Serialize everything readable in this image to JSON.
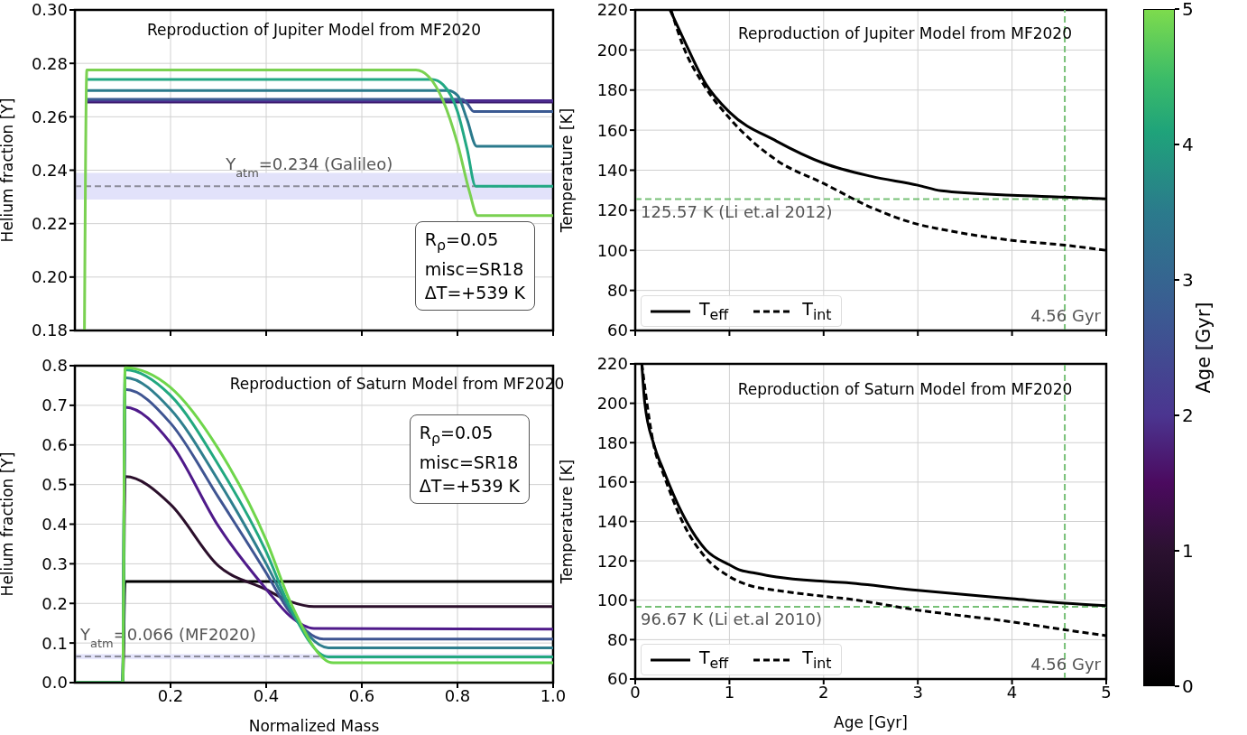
{
  "chart_data": [
    {
      "type": "line",
      "title": "Reproduction of Jupiter Model from MF2020",
      "ylabel": "Helium fraction [Y]",
      "xlim": [
        0,
        1
      ],
      "xticks": [
        0.2,
        0.4,
        0.6,
        0.8,
        1
      ],
      "ylim": [
        0.18,
        0.3
      ],
      "yticks": [
        {
          "value": 0.18,
          "label": "0.18"
        },
        {
          "value": 0.2,
          "label": "0.20"
        },
        {
          "value": 0.22,
          "label": "0.22"
        },
        {
          "value": 0.24,
          "label": "0.24"
        },
        {
          "value": 0.26,
          "label": "0.26"
        },
        {
          "value": 0.28,
          "label": "0.28"
        },
        {
          "value": 0.3,
          "label": "0.30"
        }
      ],
      "tick_labels": "y",
      "grid": true,
      "legend": false,
      "annotations": [
        "R$_{ρ}$=0.05\nmisc=SR18\nΔT=+539 K"
      ],
      "ref_lines": [
        {
          "axis": "y",
          "value": 0.234,
          "label": "Y$_{atm}$=0.234 (Galileo)",
          "color": "#8c8c99",
          "line_style": "dashed"
        }
      ],
      "bands": [
        {
          "axis": "y",
          "from": 0.229,
          "to": 0.239,
          "color": "#e2e2fa"
        }
      ],
      "series": [
        {
          "color": "#3a1a6e",
          "x": [
            0.025,
            1
          ],
          "values": [
            0.2655,
            0.2655
          ]
        },
        {
          "color": "#4b2a8e",
          "x": [
            0.025,
            1
          ],
          "values": [
            0.266,
            0.266
          ]
        },
        {
          "color": "#3b5a92",
          "x": [
            0.025,
            0.81,
            0.82,
            0.834,
            1
          ],
          "values": [
            0.2665,
            0.2665,
            0.265,
            0.262,
            0.262
          ]
        },
        {
          "color": "#2b7a8c",
          "x": [
            0.025,
            0.78,
            0.8,
            0.82,
            0.84,
            1
          ],
          "values": [
            0.2698,
            0.2698,
            0.268,
            0.259,
            0.249,
            0.249
          ]
        },
        {
          "color": "#22a884",
          "x": [
            0.025,
            0.747,
            0.77,
            0.8,
            0.82,
            0.838,
            1
          ],
          "values": [
            0.274,
            0.274,
            0.272,
            0.262,
            0.248,
            0.234,
            0.234
          ]
        },
        {
          "color": "#7ad151",
          "x": [
            0.02,
            0.025,
            0.713,
            0.74,
            0.77,
            0.8,
            0.825,
            0.842,
            1
          ],
          "values": [
            0.18,
            0.2775,
            0.2775,
            0.275,
            0.266,
            0.25,
            0.232,
            0.223,
            0.223
          ]
        }
      ]
    },
    {
      "type": "line",
      "title": "Reproduction of Jupiter Model from MF2020",
      "ylabel": "Temperature [K]",
      "xlim": [
        0,
        5
      ],
      "xticks": [
        0,
        1,
        2,
        3,
        4,
        5
      ],
      "ylim": [
        60,
        220
      ],
      "yticks": [
        60,
        80,
        100,
        120,
        140,
        160,
        180,
        200,
        220
      ],
      "tick_labels": "y",
      "grid": true,
      "legend": "bottom left",
      "ref_lines": [
        {
          "axis": "y",
          "value": 125.57,
          "label": "125.57 K (Li et.al 2012)",
          "color": "#77c077",
          "line_style": "dashed"
        },
        {
          "axis": "x",
          "value": 4.56,
          "label": "4.56 Gyr",
          "color": "#77c077",
          "line_style": "dashed"
        }
      ],
      "series": [
        {
          "name": "T$_{eff}$",
          "color": "#000000",
          "line_style": "solid",
          "x": [
            0.37,
            0.5,
            0.75,
            1,
            1.5,
            2,
            2.5,
            3,
            3.25,
            4,
            4.56,
            5
          ],
          "values": [
            220,
            206.8,
            183,
            169,
            154.5,
            143.5,
            137,
            132.5,
            129.7,
            127.5,
            126.6,
            125.7
          ]
        },
        {
          "name": "T$_{int}$",
          "color": "#000000",
          "line_style": "dashed",
          "x": [
            0.38,
            0.5,
            0.75,
            1,
            1.5,
            2,
            2.5,
            3,
            3.25,
            4,
            4.56,
            5
          ],
          "values": [
            220,
            203,
            181,
            166,
            145,
            133.4,
            121.5,
            113,
            110.5,
            105,
            102.6,
            100
          ]
        }
      ]
    },
    {
      "type": "line",
      "title": "Reproduction of Saturn Model from MF2020",
      "xlabel": "Normalized Mass",
      "ylabel": "Helium fraction [Y]",
      "xlim": [
        0,
        1
      ],
      "xticks": [
        0.2,
        0.4,
        0.6,
        0.8,
        {
          "value": 1,
          "label": "1.0"
        }
      ],
      "ylim": [
        0,
        0.8
      ],
      "yticks": [
        {
          "value": 0,
          "label": "0.0"
        },
        0.1,
        0.2,
        0.3,
        0.4,
        0.5,
        0.6,
        0.7,
        0.8
      ],
      "grid": true,
      "legend": false,
      "clabel": "Age [Gyr]",
      "clim": [
        0,
        5
      ],
      "cticks": [
        0,
        1,
        2,
        3,
        4,
        5
      ],
      "annotations": [
        "R$_{ρ}$=0.05\nmisc=SR18\nΔT=+539 K"
      ],
      "ref_lines": [
        {
          "axis": "y",
          "value": 0.066,
          "label": "Y$_{atm}$=0.066 (MF2020)",
          "color": "#8c8c99",
          "line_style": "dashed"
        }
      ],
      "bands": [
        {
          "axis": "y",
          "from": 0.06,
          "to": 0.072,
          "color": "#e2e2fa"
        }
      ],
      "series": [
        {
          "color": "#000000",
          "x": [
            0,
            0.1,
            0.105,
            1
          ],
          "values": [
            0,
            0,
            0.255,
            0.255
          ]
        },
        {
          "color": "#2b0f2b",
          "x": [
            0,
            0.1,
            0.105,
            0.2,
            0.3,
            0.4,
            0.45,
            0.5,
            1
          ],
          "values": [
            0,
            0,
            0.52,
            0.45,
            0.295,
            0.235,
            0.205,
            0.192,
            0.192
          ]
        },
        {
          "color": "#4f1a8a",
          "x": [
            0,
            0.1,
            0.105,
            0.2,
            0.3,
            0.4,
            0.45,
            0.5,
            1
          ],
          "values": [
            0,
            0,
            0.695,
            0.605,
            0.395,
            0.236,
            0.168,
            0.137,
            0.135
          ]
        },
        {
          "color": "#3f5592",
          "x": [
            0,
            0.1,
            0.105,
            0.2,
            0.3,
            0.4,
            0.45,
            0.52,
            1
          ],
          "values": [
            0,
            0,
            0.74,
            0.655,
            0.468,
            0.277,
            0.177,
            0.11,
            0.11
          ]
        },
        {
          "color": "#2f7f8e",
          "x": [
            0,
            0.1,
            0.105,
            0.2,
            0.3,
            0.4,
            0.45,
            0.53,
            1
          ],
          "values": [
            0,
            0,
            0.77,
            0.69,
            0.51,
            0.3,
            0.185,
            0.088,
            0.088
          ]
        },
        {
          "color": "#22a880",
          "x": [
            0,
            0.1,
            0.105,
            0.2,
            0.3,
            0.4,
            0.45,
            0.53,
            1
          ],
          "values": [
            0,
            0,
            0.79,
            0.725,
            0.55,
            0.33,
            0.19,
            0.065,
            0.065
          ]
        },
        {
          "color": "#6fd64b",
          "x": [
            0,
            0.1,
            0.105,
            0.2,
            0.3,
            0.4,
            0.45,
            0.54,
            1
          ],
          "values": [
            0,
            0,
            0.795,
            0.745,
            0.59,
            0.36,
            0.205,
            0.05,
            0.05
          ]
        }
      ]
    },
    {
      "type": "line",
      "title": "Reproduction of Saturn Model from MF2020",
      "xlabel": "Age [Gyr]",
      "ylabel": "Temperature [K]",
      "xlim": [
        0,
        5
      ],
      "xticks": [
        0,
        1,
        2,
        3,
        4,
        5
      ],
      "ylim": [
        60,
        220
      ],
      "yticks": [
        60,
        80,
        100,
        120,
        140,
        160,
        180,
        200,
        220
      ],
      "grid": true,
      "legend": "bottom left",
      "ref_lines": [
        {
          "axis": "y",
          "value": 96.67,
          "label": "96.67 K (Li et.al 2010)",
          "color": "#77c077",
          "line_style": "dashed"
        },
        {
          "axis": "x",
          "value": 4.56,
          "label": "4.56 Gyr",
          "color": "#77c077",
          "line_style": "dashed"
        }
      ],
      "series": [
        {
          "name": "T$_{eff}$",
          "color": "#000000",
          "line_style": "solid",
          "x": [
            0.07,
            0.1,
            0.2,
            0.3,
            0.5,
            0.75,
            1,
            1.1,
            1.25,
            1.5,
            2,
            2.2,
            3,
            4,
            4.56,
            5
          ],
          "values": [
            220,
            200.7,
            178.8,
            166,
            144,
            125.6,
            118,
            115.5,
            114,
            111.8,
            109.6,
            109,
            105,
            100.8,
            98.5,
            97.2
          ]
        },
        {
          "name": "T$_{int}$",
          "color": "#000000",
          "line_style": "dashed",
          "x": [
            0.07,
            0.2,
            0.3,
            0.5,
            0.75,
            1,
            1.1,
            1.25,
            1.5,
            2,
            2.2,
            3,
            4,
            4.56,
            5
          ],
          "values": [
            220,
            178,
            164,
            140,
            121.5,
            112,
            109.5,
            107,
            105,
            102,
            101,
            95,
            89,
            85,
            82
          ]
        }
      ]
    }
  ]
}
